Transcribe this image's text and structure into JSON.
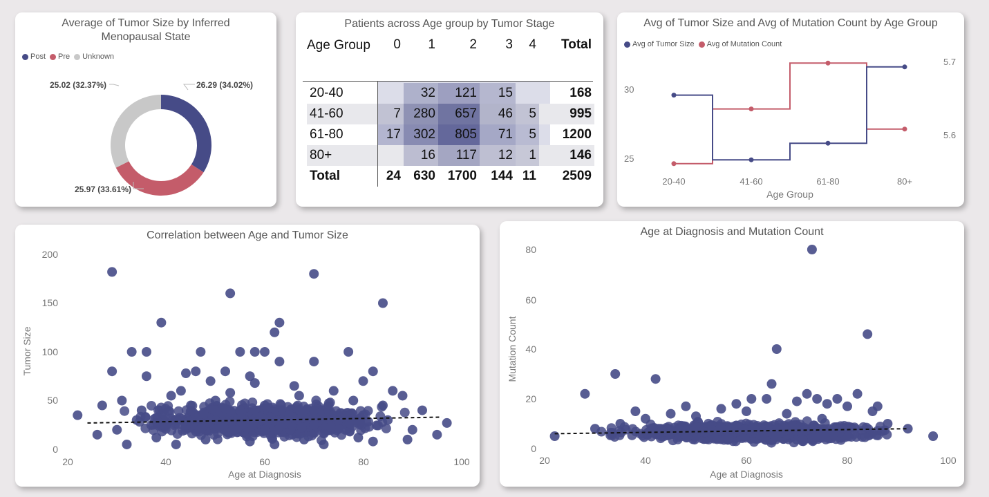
{
  "colors": {
    "post": "#464b87",
    "pre": "#c45c6a",
    "unknown": "#c8c8c8",
    "mutation_line": "#c45c6a",
    "tumor_line": "#464b87",
    "scatter": "#464b87"
  },
  "chart_data": [
    {
      "id": "donut",
      "type": "pie",
      "title": "Average of Tumor Size by Inferred Menopausal State",
      "categories": [
        "Post",
        "Pre",
        "Unknown"
      ],
      "values": [
        26.29,
        25.97,
        25.02
      ],
      "labels": [
        "26.29 (34.02%)",
        "25.97 (33.61%)",
        "25.02 (32.37%)"
      ],
      "legend": "top-left"
    },
    {
      "id": "matrix",
      "type": "table",
      "title": "Patients across Age group by Tumor Stage",
      "row_header": "Age Group",
      "columns": [
        "0",
        "1",
        "2",
        "3",
        "4",
        "Total"
      ],
      "rows": [
        {
          "label": "20-40",
          "values": [
            "",
            "32",
            "121",
            "15",
            "",
            "168"
          ]
        },
        {
          "label": "41-60",
          "values": [
            "7",
            "280",
            "657",
            "46",
            "5",
            "995"
          ]
        },
        {
          "label": "61-80",
          "values": [
            "17",
            "302",
            "805",
            "71",
            "5",
            "1200"
          ]
        },
        {
          "label": "80+",
          "values": [
            "",
            "16",
            "117",
            "12",
            "1",
            "146"
          ]
        }
      ],
      "total_row": {
        "label": "Total",
        "values": [
          "24",
          "630",
          "1700",
          "144",
          "11",
          "2509"
        ]
      }
    },
    {
      "id": "step",
      "type": "line",
      "title": "Avg of Tumor Size and Avg of Mutation Count by Age Group",
      "categories": [
        "20-40",
        "41-60",
        "61-80",
        "80+"
      ],
      "xlabel": "Age Group",
      "series": [
        {
          "name": "Avg of Tumor Size",
          "axis": "left",
          "values": [
            29.1,
            25.2,
            26.2,
            30.8
          ]
        },
        {
          "name": "Avg of Mutation Count",
          "axis": "right",
          "values": [
            5.565,
            5.633,
            5.69,
            5.608
          ]
        }
      ],
      "y_left_ticks": [
        "25",
        "30"
      ],
      "y_left_range": [
        24,
        32
      ],
      "y_right_ticks": [
        "5.6",
        "5.7"
      ],
      "y_right_range": [
        5.545,
        5.71
      ],
      "legend": "top-left"
    },
    {
      "id": "scatter1",
      "type": "scatter",
      "title": "Correlation between Age and Tumor Size",
      "xlabel": "Age at Diagnosis",
      "ylabel": "Tumor Size",
      "xlim": [
        20,
        100
      ],
      "ylim": [
        0,
        200
      ],
      "xticks": [
        "20",
        "40",
        "60",
        "80",
        "100"
      ],
      "yticks": [
        "0",
        "50",
        "100",
        "150",
        "200"
      ],
      "trend": [
        [
          24,
          27
        ],
        [
          96,
          33
        ]
      ],
      "points": [
        [
          29,
          182
        ],
        [
          70,
          180
        ],
        [
          53,
          160
        ],
        [
          84,
          150
        ],
        [
          39,
          130
        ],
        [
          63,
          130
        ],
        [
          62,
          120
        ],
        [
          33,
          100
        ],
        [
          36,
          100
        ],
        [
          47,
          100
        ],
        [
          55,
          100
        ],
        [
          58,
          100
        ],
        [
          60,
          100
        ],
        [
          77,
          100
        ],
        [
          29,
          80
        ],
        [
          46,
          80
        ],
        [
          52,
          80
        ],
        [
          70,
          90
        ],
        [
          63,
          90
        ],
        [
          36,
          75
        ],
        [
          44,
          78
        ],
        [
          57,
          75
        ],
        [
          82,
          80
        ],
        [
          22,
          35
        ],
        [
          97,
          27
        ],
        [
          27,
          45
        ],
        [
          92,
          40
        ],
        [
          31,
          50
        ],
        [
          86,
          60
        ],
        [
          74,
          60
        ],
        [
          66,
          65
        ],
        [
          41,
          55
        ],
        [
          49,
          70
        ],
        [
          58,
          68
        ],
        [
          80,
          70
        ],
        [
          88,
          55
        ],
        [
          35,
          40
        ],
        [
          45,
          45
        ],
        [
          50,
          50
        ],
        [
          55,
          40
        ],
        [
          60,
          45
        ],
        [
          65,
          35
        ],
        [
          70,
          40
        ],
        [
          75,
          30
        ],
        [
          80,
          35
        ],
        [
          85,
          30
        ],
        [
          30,
          20
        ],
        [
          40,
          25
        ],
        [
          50,
          30
        ],
        [
          60,
          20
        ],
        [
          70,
          25
        ],
        [
          90,
          20
        ],
        [
          95,
          15
        ],
        [
          26,
          15
        ],
        [
          34,
          30
        ],
        [
          43,
          60
        ],
        [
          53,
          58
        ],
        [
          67,
          55
        ],
        [
          78,
          50
        ],
        [
          84,
          45
        ],
        [
          38,
          12
        ],
        [
          48,
          10
        ],
        [
          57,
          8
        ],
        [
          68,
          10
        ],
        [
          79,
          12
        ],
        [
          89,
          10
        ],
        [
          32,
          5
        ],
        [
          42,
          5
        ],
        [
          62,
          5
        ],
        [
          72,
          5
        ],
        [
          82,
          8
        ]
      ],
      "cluster": {
        "x_range": [
          30,
          90
        ],
        "y_range": [
          5,
          55
        ],
        "count": 900
      }
    },
    {
      "id": "scatter2",
      "type": "scatter",
      "title": "Age at Diagnosis and Mutation Count",
      "xlabel": "Age at Diagnosis",
      "ylabel": "Mutation Count",
      "xlim": [
        20,
        100
      ],
      "ylim": [
        0,
        80
      ],
      "xticks": [
        "20",
        "40",
        "60",
        "80",
        "100"
      ],
      "yticks": [
        "0",
        "20",
        "40",
        "60",
        "80"
      ],
      "trend": [
        [
          22,
          6
        ],
        [
          92,
          8
        ]
      ],
      "points": [
        [
          73,
          80
        ],
        [
          84,
          46
        ],
        [
          66,
          40
        ],
        [
          34,
          30
        ],
        [
          42,
          28
        ],
        [
          28,
          22
        ],
        [
          65,
          26
        ],
        [
          72,
          22
        ],
        [
          74,
          20
        ],
        [
          82,
          22
        ],
        [
          61,
          20
        ],
        [
          78,
          20
        ],
        [
          70,
          19
        ],
        [
          64,
          20
        ],
        [
          76,
          18
        ],
        [
          80,
          17
        ],
        [
          86,
          17
        ],
        [
          22,
          5
        ],
        [
          97,
          5
        ],
        [
          92,
          8
        ],
        [
          30,
          8
        ],
        [
          35,
          10
        ],
        [
          40,
          12
        ],
        [
          45,
          14
        ],
        [
          50,
          13
        ],
        [
          55,
          16
        ],
        [
          60,
          15
        ],
        [
          68,
          14
        ],
        [
          75,
          12
        ],
        [
          88,
          10
        ],
        [
          38,
          15
        ],
        [
          48,
          17
        ],
        [
          58,
          18
        ],
        [
          85,
          15
        ]
      ],
      "cluster": {
        "x_range": [
          28,
          92
        ],
        "y_range": [
          1,
          12
        ],
        "count": 800
      }
    }
  ]
}
